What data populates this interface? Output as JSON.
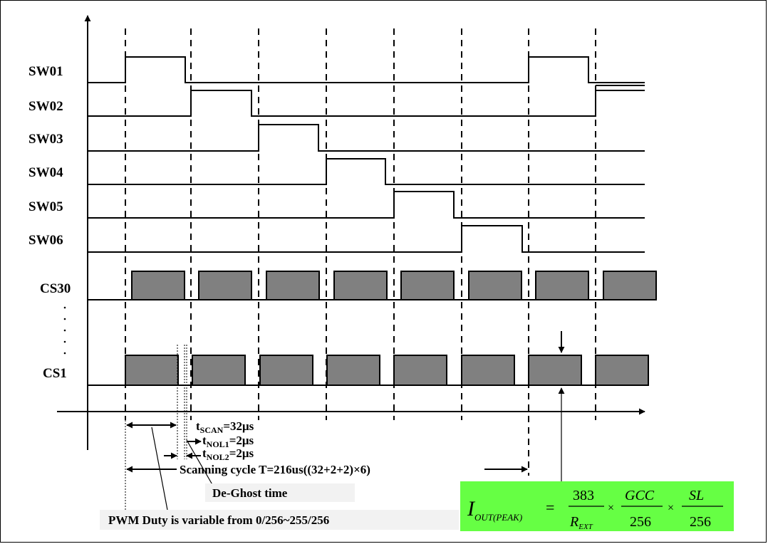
{
  "signals": {
    "sw01": "SW01",
    "sw02": "SW02",
    "sw03": "SW03",
    "sw04": "SW04",
    "sw05": "SW05",
    "sw06": "SW06",
    "cs30": "CS30",
    "cs1": "CS1"
  },
  "annotations": {
    "t_scan": {
      "t": "t",
      "sub": "SCAN",
      "rest": "=32μs"
    },
    "t_nol1": {
      "t": "t",
      "sub": "NOL1",
      "rest": "=2μs"
    },
    "t_nol2": {
      "t": "t",
      "sub": "NOL2",
      "rest": "=2μs"
    },
    "scanning_cycle": "Scanning cycle T=216us((32+2+2)×6)",
    "de_ghost": "De-Ghost time",
    "pwm_duty": "PWM Duty is variable from 0/256~255/256"
  },
  "formula": {
    "lhs_main": "I",
    "lhs_sub": "OUT(PEAK)",
    "equals": "=",
    "num1": "383",
    "den1_main": "R",
    "den1_sub": "EXT",
    "times1": "×",
    "num2": "GCC",
    "den2": "256",
    "times2": "×",
    "num3": "SL",
    "den3": "256"
  },
  "colors": {
    "pulse_fill": "#808080",
    "formula_bg": "#66ff44"
  }
}
